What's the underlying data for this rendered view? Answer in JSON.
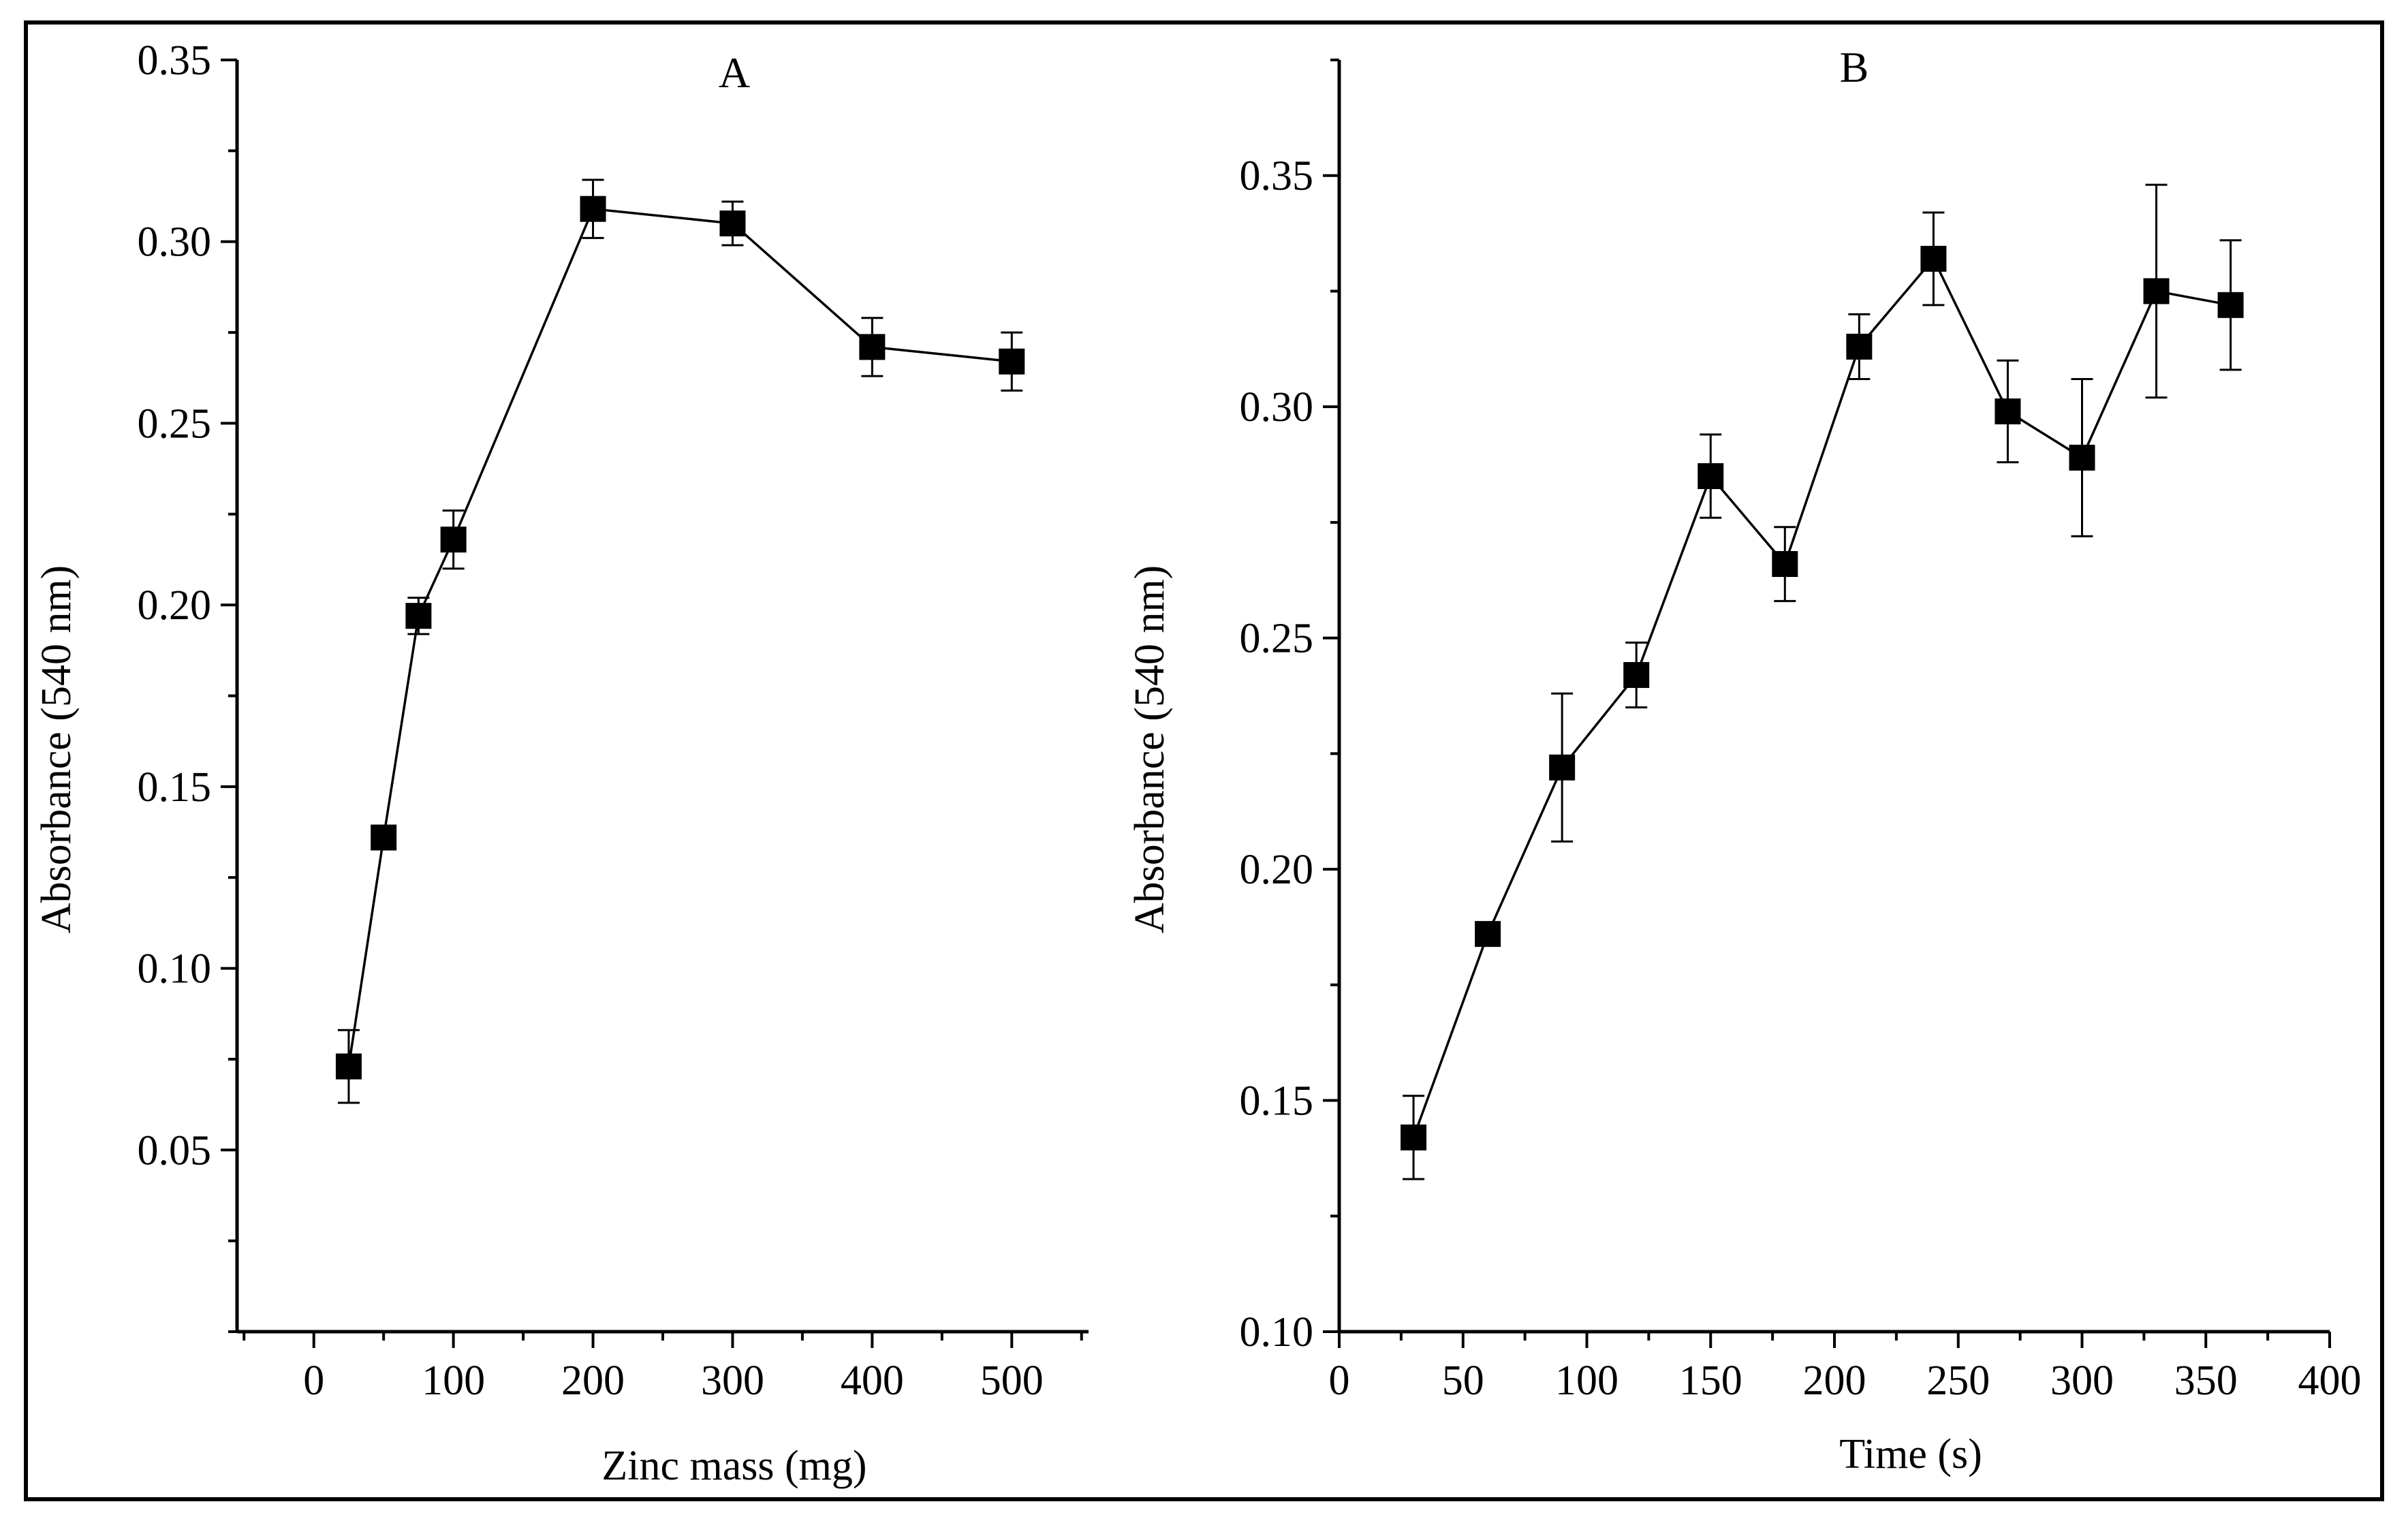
{
  "chart_data": [
    {
      "type": "line",
      "title": "A",
      "xlabel": "Zinc mass (mg)",
      "ylabel": "Absorbance (540 nm)",
      "xlim": [
        -55,
        555
      ],
      "ylim": [
        0,
        0.35
      ],
      "xticks": [
        0,
        100,
        200,
        300,
        400,
        500
      ],
      "xtick_labels": [
        "0",
        "100",
        "200",
        "300",
        "400",
        "500"
      ],
      "yticks": [
        0.05,
        0.1,
        0.15,
        0.2,
        0.25,
        0.3,
        0.35
      ],
      "ytick_labels": [
        "0.05",
        "0.10",
        "0.15",
        "0.20",
        "0.25",
        "0.30",
        "0.35"
      ],
      "series": [
        {
          "name": "Absorbance",
          "marker": "square",
          "x": [
            25,
            50,
            75,
            100,
            200,
            300,
            400,
            500
          ],
          "y": [
            0.073,
            0.136,
            0.197,
            0.218,
            0.309,
            0.305,
            0.271,
            0.267
          ],
          "err": [
            0.01,
            0.003,
            0.005,
            0.008,
            0.008,
            0.006,
            0.008,
            0.008
          ]
        }
      ]
    },
    {
      "type": "line",
      "title": "B",
      "xlabel": "Time (s)",
      "ylabel": "Absorbance (540 nm)",
      "xlim": [
        0,
        400
      ],
      "ylim": [
        0.1,
        0.375
      ],
      "xticks": [
        0,
        50,
        100,
        150,
        200,
        250,
        300,
        350,
        400
      ],
      "xtick_labels": [
        "0",
        "50",
        "100",
        "150",
        "200",
        "250",
        "300",
        "350",
        "400"
      ],
      "yticks": [
        0.1,
        0.15,
        0.2,
        0.25,
        0.3,
        0.35
      ],
      "ytick_labels": [
        "0.10",
        "0.15",
        "0.20",
        "0.25",
        "0.30",
        "0.35"
      ],
      "series": [
        {
          "name": "Absorbance",
          "marker": "square",
          "x": [
            30,
            60,
            90,
            120,
            150,
            180,
            210,
            240,
            270,
            300,
            330,
            360
          ],
          "y": [
            0.142,
            0.186,
            0.222,
            0.242,
            0.285,
            0.266,
            0.313,
            0.332,
            0.299,
            0.289,
            0.325,
            0.322
          ],
          "err": [
            0.009,
            0.0,
            0.016,
            0.007,
            0.009,
            0.008,
            0.007,
            0.01,
            0.011,
            0.017,
            0.023,
            0.014
          ]
        }
      ]
    }
  ],
  "colors": {
    "ink": "#000000",
    "background": "#ffffff"
  }
}
